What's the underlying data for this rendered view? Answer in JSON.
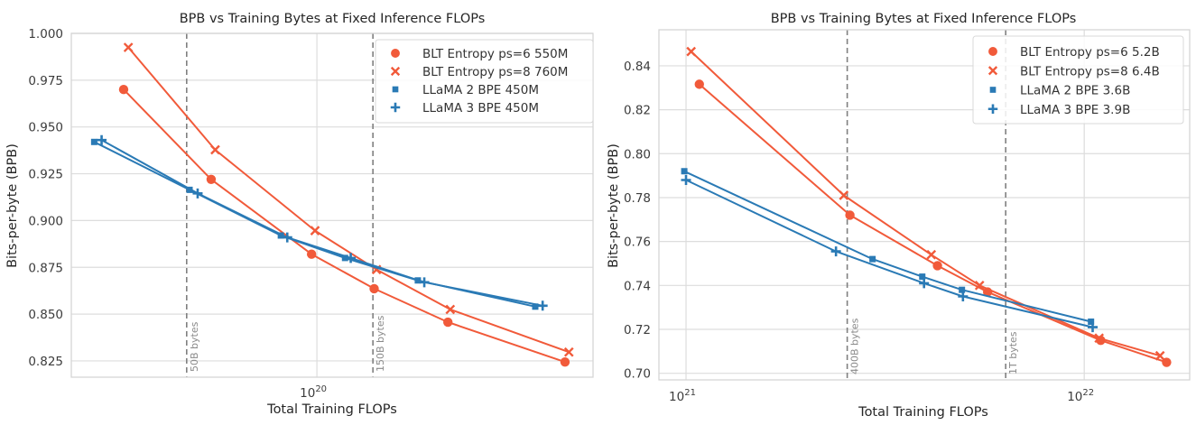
{
  "chart_data": [
    {
      "type": "line",
      "title": "BPB vs Training Bytes at Fixed Inference FLOPs",
      "xlabel": "Total Training FLOPs",
      "ylabel": "Bits-per-byte (BPB)",
      "xscale": "log",
      "xlim": [
        2.36e+19,
        5.07e+20
      ],
      "ylim": [
        0.8163,
        1.0
      ],
      "yticks": [
        0.825,
        0.85,
        0.875,
        0.9,
        0.925,
        0.95,
        0.975,
        1.0
      ],
      "ytick_labels": [
        "0.825",
        "0.850",
        "0.875",
        "0.900",
        "0.925",
        "0.950",
        "0.975",
        "1.000"
      ],
      "xticks": [
        1e+20
      ],
      "xtick_labels": [
        {
          "base": "10",
          "exp": "20"
        }
      ],
      "grid": true,
      "legend_position": "top-right",
      "reference_lines": [
        {
          "x": 4.65e+19,
          "label": "50B bytes"
        },
        {
          "x": 1.39e+20,
          "label": "150B bytes"
        }
      ],
      "series": [
        {
          "name": "BLT Entropy ps=6 550M",
          "marker": "circle",
          "color": "#f15a3a",
          "x": [
            3.21e+19,
            5.37e+19,
            9.69e+19,
            1.4e+20,
            2.16e+20,
            4.3e+20
          ],
          "y": [
            0.97,
            0.922,
            0.882,
            0.8636,
            0.8457,
            0.8244
          ]
        },
        {
          "name": "BLT Entropy ps=8 760M",
          "marker": "x",
          "color": "#f15a3a",
          "x": [
            3.3e+19,
            5.5e+19,
            9.89e+19,
            1.42e+20,
            2.19e+20,
            4.4e+20
          ],
          "y": [
            0.9925,
            0.9378,
            0.8946,
            0.8738,
            0.8525,
            0.8297
          ]
        },
        {
          "name": "LLaMA 2 BPE 450M",
          "marker": "square",
          "color": "#2a7ab5",
          "x": [
            2.7e+19,
            4.73e+19,
            8.09e+19,
            1.18e+20,
            1.81e+20,
            3.61e+20
          ],
          "y": [
            0.942,
            0.9164,
            0.892,
            0.88,
            0.868,
            0.854
          ]
        },
        {
          "name": "LLaMA 3 BPE 450M",
          "marker": "plus",
          "color": "#2a7ab5",
          "x": [
            2.82e+19,
            4.96e+19,
            8.4e+19,
            1.22e+20,
            1.88e+20,
            3.77e+20
          ],
          "y": [
            0.943,
            0.9145,
            0.891,
            0.88,
            0.867,
            0.8545
          ]
        }
      ]
    },
    {
      "type": "line",
      "title": "BPB vs Training Bytes at Fixed Inference FLOPs",
      "xlabel": "Total Training FLOPs",
      "ylabel": "Bits-per-byte (BPB)",
      "xscale": "log",
      "xlim": [
        8.55e+20,
        1.84e+22
      ],
      "ylim": [
        0.697,
        0.8564
      ],
      "yticks": [
        0.7,
        0.72,
        0.74,
        0.76,
        0.78,
        0.8,
        0.82,
        0.84
      ],
      "ytick_labels": [
        "0.70",
        "0.72",
        "0.74",
        "0.76",
        "0.78",
        "0.80",
        "0.82",
        "0.84"
      ],
      "xticks": [
        1e+21,
        1e+22
      ],
      "xtick_labels": [
        {
          "base": "10",
          "exp": "21"
        },
        {
          "base": "10",
          "exp": "22"
        }
      ],
      "grid": true,
      "legend_position": "top-right",
      "reference_lines": [
        {
          "x": 2.54e+21,
          "label": "400B bytes"
        },
        {
          "x": 6.35e+21,
          "label": "1T bytes"
        }
      ],
      "series": [
        {
          "name": "BLT Entropy ps=6 5.2B",
          "marker": "circle",
          "color": "#f15a3a",
          "x": [
            1.08e+21,
            2.58e+21,
            4.28e+21,
            5.72e+21,
            1.1e+22,
            1.61e+22
          ],
          "y": [
            0.8316,
            0.772,
            0.749,
            0.737,
            0.715,
            0.705
          ]
        },
        {
          "name": "BLT Entropy ps=8 6.4B",
          "marker": "x",
          "color": "#f15a3a",
          "x": [
            1.03e+21,
            2.49e+21,
            4.13e+21,
            5.46e+21,
            1.09e+22,
            1.55e+22
          ],
          "y": [
            0.8465,
            0.781,
            0.754,
            0.74,
            0.716,
            0.708
          ]
        },
        {
          "name": "LLaMA 2 BPE 3.6B",
          "marker": "square",
          "color": "#2a7ab5",
          "x": [
            9.9e+20,
            2.94e+21,
            3.92e+21,
            4.93e+21,
            1.04e+22
          ],
          "y": [
            0.792,
            0.752,
            0.744,
            0.738,
            0.7235
          ]
        },
        {
          "name": "LLaMA 3 BPE 3.9B",
          "marker": "plus",
          "color": "#2a7ab5",
          "x": [
            1e+21,
            2.38e+21,
            3.96e+21,
            4.96e+21,
            1.05e+22
          ],
          "y": [
            0.788,
            0.7555,
            0.741,
            0.735,
            0.721
          ]
        }
      ]
    }
  ]
}
